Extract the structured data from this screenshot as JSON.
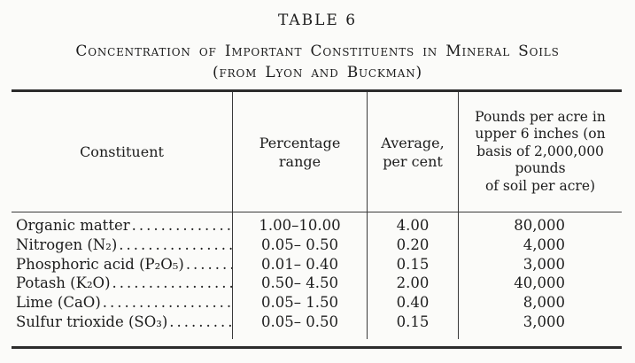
{
  "title": "TABLE 6",
  "subtitle": {
    "line1": "Concentration of Important Constituents in Mineral Soils",
    "line2": "(from Lyon and Buckman)"
  },
  "table": {
    "dot_leader": "..................................................",
    "headers": {
      "constituent": "Constituent",
      "range": "Percentage\nrange",
      "average": "Average,\nper cent",
      "pounds": "Pounds per acre in\nupper 6 inches (on\nbasis of 2,000,000\npounds\nof soil per acre)"
    },
    "rows": [
      {
        "constituent": "Organic matter",
        "range": "1.00–10.00",
        "average": "4.00",
        "pounds": "80,000"
      },
      {
        "constituent": "Nitrogen (N₂)",
        "range": "0.05– 0.50",
        "average": "0.20",
        "pounds": "4,000"
      },
      {
        "constituent": "Phosphoric acid (P₂O₅)",
        "range": "0.01– 0.40",
        "average": "0.15",
        "pounds": "3,000"
      },
      {
        "constituent": "Potash (K₂O)",
        "range": "0.50– 4.50",
        "average": "2.00",
        "pounds": "40,000"
      },
      {
        "constituent": "Lime (CaO)",
        "range": "0.05– 1.50",
        "average": "0.40",
        "pounds": "8,000"
      },
      {
        "constituent": "Sulfur trioxide (SO₃)",
        "range": "0.05– 0.50",
        "average": "0.15",
        "pounds": "3,000"
      }
    ]
  }
}
